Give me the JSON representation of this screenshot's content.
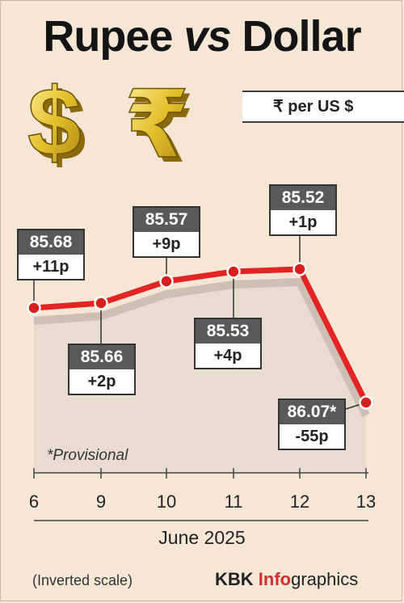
{
  "title": {
    "part1": "Rupee",
    "part2": "vs",
    "part3": "Dollar"
  },
  "unit": "₹ per US $",
  "note": "*Provisional",
  "axis_title": "June 2025",
  "footnote": "(Inverted scale)",
  "credit": {
    "k": "KBK",
    "i": "Info",
    "rest": "graphics"
  },
  "colors": {
    "line": "#e32424",
    "background": "#f5e6d6",
    "label_header": "#595959"
  },
  "icons": [
    "dollar-sign-icon",
    "rupee-sign-icon"
  ],
  "chart_data": {
    "type": "line",
    "x": [
      "6",
      "9",
      "10",
      "11",
      "12",
      "13"
    ],
    "values": [
      85.68,
      85.66,
      85.57,
      85.53,
      85.52,
      86.07
    ],
    "value_labels": [
      "85.68",
      "85.66",
      "85.57",
      "85.53",
      "85.52",
      "86.07*"
    ],
    "change_labels": [
      "+11p",
      "+2p",
      "+9p",
      "+4p",
      "+1p",
      "-55p"
    ],
    "xlabel": "June 2025",
    "y_inverted": true,
    "grid": false
  }
}
